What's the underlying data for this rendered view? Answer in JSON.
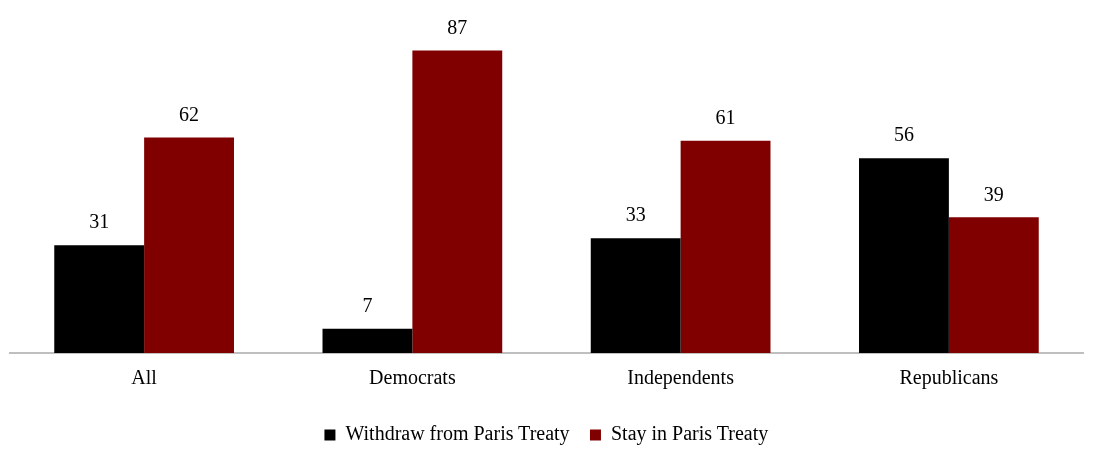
{
  "chart_data": {
    "type": "bar",
    "categories": [
      "All",
      "Democrats",
      "Independents",
      "Republicans"
    ],
    "series": [
      {
        "name": "Withdraw from Paris Treaty",
        "color": "#000000",
        "values": [
          31,
          7,
          33,
          56
        ]
      },
      {
        "name": "Stay in Paris Treaty",
        "color": "#800000",
        "values": [
          62,
          87,
          61,
          39
        ]
      }
    ],
    "data_labels": true,
    "legend": "bottom",
    "grid": false
  }
}
